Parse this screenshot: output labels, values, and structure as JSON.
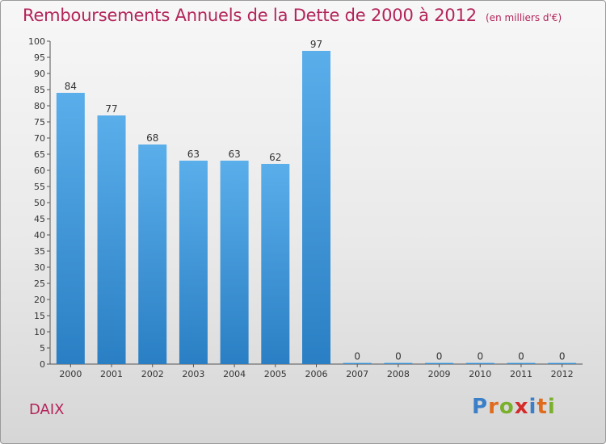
{
  "title": "Remboursements Annuels de la Dette de 2000 à 2012",
  "unit": "(en milliers d'€)",
  "place": "DAIX",
  "logo": {
    "letters": [
      "P",
      "r",
      "o",
      "x",
      "i",
      "t",
      "i"
    ],
    "colors": [
      "#3a7fc8",
      "#e06b1c",
      "#7ab02c",
      "#d42a2a",
      "#3a7fc8",
      "#e06b1c",
      "#7ab02c"
    ]
  },
  "colors": {
    "bar": "#2a7fc4",
    "bar_light": "#5aaeea",
    "accent": "#b3245a"
  },
  "chart_data": {
    "type": "bar",
    "categories": [
      "2000",
      "2001",
      "2002",
      "2003",
      "2004",
      "2005",
      "2006",
      "2007",
      "2008",
      "2009",
      "2010",
      "2011",
      "2012"
    ],
    "values": [
      84,
      77,
      68,
      63,
      63,
      62,
      97,
      0,
      0,
      0,
      0,
      0,
      0
    ],
    "value_labels": [
      "84",
      "77",
      "68",
      "63",
      "63",
      "62",
      "97",
      "0",
      "0",
      "0",
      "0",
      "0",
      "0"
    ],
    "yticks": [
      "0",
      "5",
      "10",
      "15",
      "20",
      "25",
      "30",
      "35",
      "40",
      "45",
      "50",
      "55",
      "60",
      "65",
      "70",
      "75",
      "80",
      "85",
      "90",
      "95",
      "100"
    ],
    "ylim": [
      0,
      100
    ],
    "grid": false,
    "legend": "none"
  }
}
